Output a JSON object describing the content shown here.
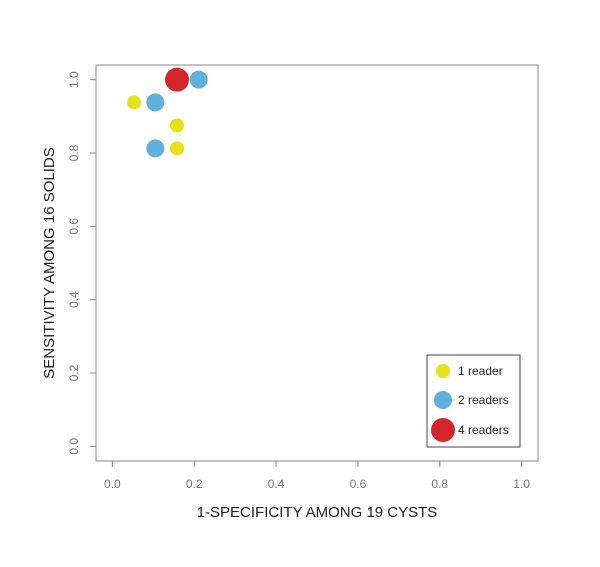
{
  "chart_data": {
    "type": "scatter",
    "title": "",
    "xlabel": "1-SPECIFICITY AMONG 19 CYSTS",
    "ylabel": "SENSITIVITY AMONG 16 SOLIDS",
    "xlim": [
      -0.04,
      1.04
    ],
    "ylim": [
      -0.04,
      1.04
    ],
    "xticks": [
      "0.0",
      "0.2",
      "0.4",
      "0.6",
      "0.8",
      "1.0"
    ],
    "yticks": [
      "0.0",
      "0.2",
      "0.4",
      "0.6",
      "0.8",
      "1.0"
    ],
    "grid": false,
    "legend_position": "bottom-right",
    "groups": [
      {
        "label": "1 reader",
        "color": "#e8e21a",
        "readers": 1
      },
      {
        "label": "2 readers",
        "color": "#5fb0dc",
        "readers": 2
      },
      {
        "label": "4 readers",
        "color": "#d4262a",
        "readers": 4
      }
    ],
    "points": [
      {
        "x": 0.053,
        "y": 0.938,
        "readers": 1
      },
      {
        "x": 0.158,
        "y": 0.875,
        "readers": 1
      },
      {
        "x": 0.158,
        "y": 0.8125,
        "readers": 1
      },
      {
        "x": 0.105,
        "y": 0.938,
        "readers": 2
      },
      {
        "x": 0.105,
        "y": 0.8125,
        "readers": 2
      },
      {
        "x": 0.211,
        "y": 1.0,
        "readers": 2
      },
      {
        "x": 0.158,
        "y": 1.0,
        "readers": 4
      }
    ]
  }
}
